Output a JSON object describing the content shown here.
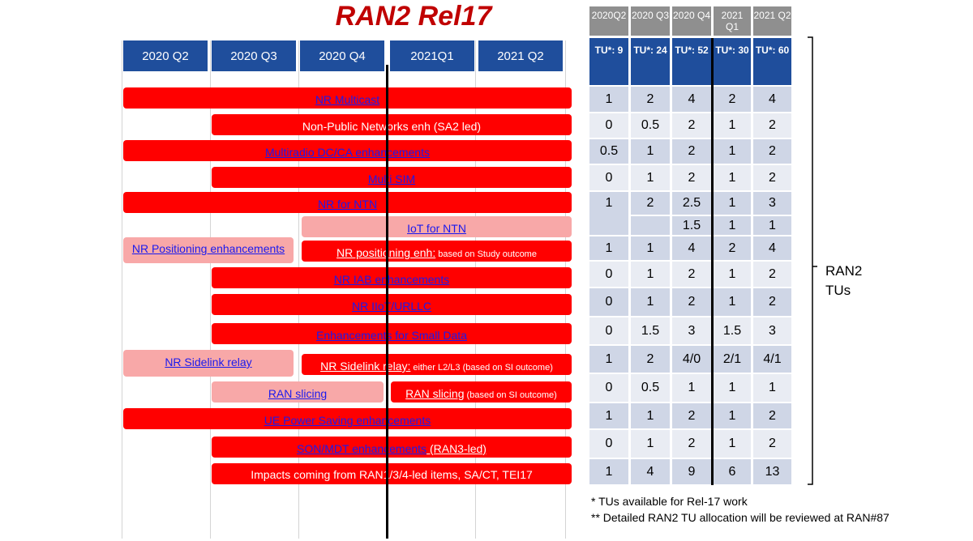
{
  "title": "RAN2 Rel17",
  "quarters": [
    "2020 Q2",
    "2020 Q3",
    "2020 Q4",
    "2021Q1",
    "2021 Q2"
  ],
  "bars": [
    {
      "parts": [
        {
          "text": "NR Multicast",
          "style": "link"
        }
      ]
    },
    {
      "parts": [
        {
          "text": "Non-Public Networks enh (SA2 led)",
          "style": "white"
        }
      ]
    },
    {
      "parts": [
        {
          "text": "Multiradio DC/CA enhancements",
          "style": "link"
        }
      ]
    },
    {
      "parts": [
        {
          "text": "Multi SIM",
          "style": "link"
        }
      ]
    },
    {
      "parts": [
        {
          "text": "NR for NTN",
          "style": "link"
        }
      ]
    },
    {
      "parts": [
        {
          "text": "IoT for NTN",
          "style": "link"
        }
      ]
    },
    {
      "parts": [
        {
          "text": "NR Positioning enhancements",
          "style": "link"
        }
      ]
    },
    {
      "parts": [
        {
          "text": "NR positioning enh:",
          "style": "whitelink"
        },
        {
          "text": " based on Study outcome",
          "style": "small"
        }
      ]
    },
    {
      "parts": [
        {
          "text": "NR IAB enhancements",
          "style": "link"
        }
      ]
    },
    {
      "parts": [
        {
          "text": "NR IIoT/URLLC",
          "style": "link"
        }
      ]
    },
    {
      "parts": [
        {
          "text": "Enhancements for Small Data",
          "style": "link"
        }
      ]
    },
    {
      "parts": [
        {
          "text": "NR Sidelink relay",
          "style": "link"
        }
      ]
    },
    {
      "parts": [
        {
          "text": "NR Sidelink relay:",
          "style": "whitelink"
        },
        {
          "text": " either L2/L3 (based on SI outcome)",
          "style": "small"
        }
      ]
    },
    {
      "parts": [
        {
          "text": "RAN slicing",
          "style": "link"
        }
      ]
    },
    {
      "parts": [
        {
          "text": "RAN slicing",
          "style": "whitelink"
        },
        {
          "text": " (based on SI outcome)",
          "style": "small"
        }
      ]
    },
    {
      "parts": [
        {
          "text": "UE Power Saving enhancements",
          "style": "link"
        }
      ]
    },
    {
      "parts": [
        {
          "text": "SON/MDT enhancements",
          "style": "link"
        },
        {
          "text": " (RAN3-led)",
          "style": "whitelink"
        }
      ]
    },
    {
      "parts": [
        {
          "text": "Impacts coming from RAN1/3/4-led items, SA/CT, TEI17",
          "style": "white"
        }
      ]
    }
  ],
  "tu_table": {
    "quarters": [
      "2020Q2",
      "2020 Q3",
      "2020 Q4",
      "2021 Q1",
      "2021 Q2"
    ],
    "totals": [
      "TU*: 9",
      "TU*: 24",
      "TU*: 52",
      "TU*: 30",
      "TU*: 60"
    ],
    "rows": [
      [
        "1",
        "2",
        "4",
        "2",
        "4"
      ],
      [
        "0",
        "0.5",
        "2",
        "1",
        "2"
      ],
      [
        "0.5",
        "1",
        "2",
        "1",
        "2"
      ],
      [
        "0",
        "1",
        "2",
        "1",
        "2"
      ],
      [
        "1",
        "2",
        "2.5",
        "1",
        "3"
      ],
      [
        "",
        "",
        "1.5",
        "1",
        "1"
      ],
      [
        "1",
        "1",
        "4",
        "2",
        "4"
      ],
      [
        "0",
        "1",
        "2",
        "1",
        "2"
      ],
      [
        "0",
        "1",
        "2",
        "1",
        "2"
      ],
      [
        "0",
        "1.5",
        "3",
        "1.5",
        "3"
      ],
      [
        "1",
        "2",
        "4/0",
        "2/1",
        "4/1"
      ],
      [
        "0",
        "0.5",
        "1",
        "1",
        "1"
      ],
      [
        "1",
        "1",
        "2",
        "1",
        "2"
      ],
      [
        "0",
        "1",
        "2",
        "1",
        "2"
      ],
      [
        "1",
        "4",
        "9",
        "6",
        "13"
      ]
    ]
  },
  "notes": [
    "* TUs available for Rel-17 work",
    "** Detailed RAN2 TU allocation will be reviewed at RAN#87"
  ],
  "side_label": [
    "RAN2",
    "TUs"
  ]
}
